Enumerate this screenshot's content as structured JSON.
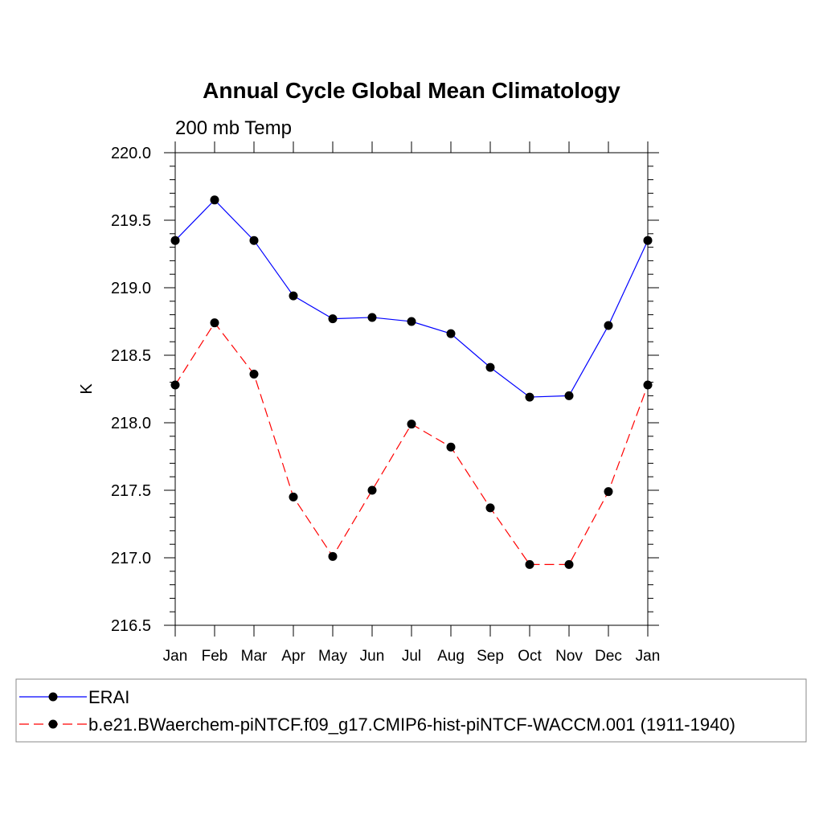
{
  "chart_data": {
    "type": "line",
    "title": "Annual Cycle Global Mean Climatology",
    "subtitle": "200 mb Temp",
    "xlabel": "",
    "ylabel": "K",
    "categories": [
      "Jan",
      "Feb",
      "Mar",
      "Apr",
      "May",
      "Jun",
      "Jul",
      "Aug",
      "Sep",
      "Oct",
      "Nov",
      "Dec",
      "Jan"
    ],
    "ylim": [
      216.5,
      220.0
    ],
    "yticks": [
      "216.5",
      "217.0",
      "217.5",
      "218.0",
      "218.5",
      "219.0",
      "219.5",
      "220.0"
    ],
    "grid": false,
    "legend_position": "bottom",
    "series": [
      {
        "name": "ERAI",
        "color": "#0000ff",
        "dashed": false,
        "values": [
          219.35,
          219.65,
          219.35,
          218.94,
          218.77,
          218.78,
          218.75,
          218.66,
          218.41,
          218.19,
          218.2,
          218.72,
          219.35
        ]
      },
      {
        "name": "b.e21.BWaerchem-piNTCF.f09_g17.CMIP6-hist-piNTCF-WACCM.001 (1911-1940)",
        "color": "#ff0000",
        "dashed": true,
        "values": [
          218.28,
          218.74,
          218.36,
          217.45,
          217.01,
          217.5,
          217.99,
          217.82,
          217.37,
          216.95,
          216.95,
          217.49,
          218.28
        ]
      }
    ]
  }
}
